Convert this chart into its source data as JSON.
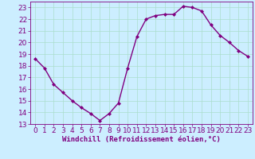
{
  "x": [
    0,
    1,
    2,
    3,
    4,
    5,
    6,
    7,
    8,
    9,
    10,
    11,
    12,
    13,
    14,
    15,
    16,
    17,
    18,
    19,
    20,
    21,
    22,
    23
  ],
  "y": [
    18.6,
    17.8,
    16.4,
    15.7,
    15.0,
    14.4,
    13.9,
    13.3,
    13.9,
    14.8,
    17.8,
    20.5,
    22.0,
    22.3,
    22.4,
    22.4,
    23.1,
    23.0,
    22.7,
    21.5,
    20.6,
    20.0,
    19.3,
    18.8
  ],
  "line_color": "#800080",
  "marker": "D",
  "marker_size": 2.0,
  "bg_color": "#cceeff",
  "grid_color": "#aaddcc",
  "xlabel": "Windchill (Refroidissement éolien,°C)",
  "ylim": [
    13,
    23.5
  ],
  "xlim": [
    -0.5,
    23.5
  ],
  "yticks": [
    13,
    14,
    15,
    16,
    17,
    18,
    19,
    20,
    21,
    22,
    23
  ],
  "xticks": [
    0,
    1,
    2,
    3,
    4,
    5,
    6,
    7,
    8,
    9,
    10,
    11,
    12,
    13,
    14,
    15,
    16,
    17,
    18,
    19,
    20,
    21,
    22,
    23
  ],
  "xlabel_fontsize": 6.5,
  "tick_fontsize": 6.5,
  "line_width": 1.0
}
